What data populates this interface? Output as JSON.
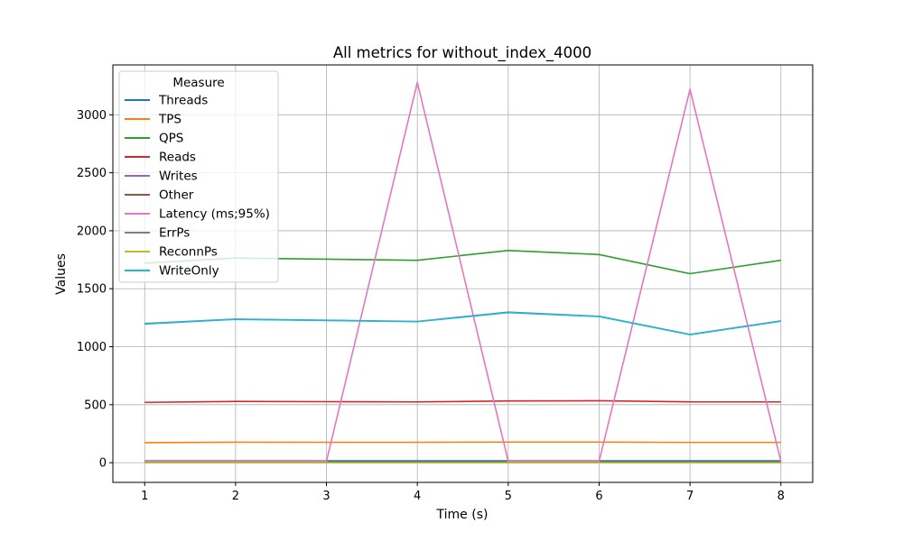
{
  "chart_data": {
    "type": "line",
    "title": "All metrics for without_index_4000",
    "xlabel": "Time (s)",
    "ylabel": "Values",
    "x": [
      1,
      2,
      3,
      4,
      5,
      6,
      7,
      8
    ],
    "xlim": [
      0.65,
      8.35
    ],
    "ylim": [
      -170,
      3430
    ],
    "xticks": [
      1,
      2,
      3,
      4,
      5,
      6,
      7,
      8
    ],
    "yticks": [
      0,
      500,
      1000,
      1500,
      2000,
      2500,
      3000
    ],
    "grid": true,
    "legend": {
      "title": "Measure",
      "placement": "top-left"
    },
    "series": [
      {
        "name": "Threads",
        "color": "#1f77b4",
        "values": [
          16,
          16,
          16,
          16,
          16,
          16,
          16,
          16
        ]
      },
      {
        "name": "TPS",
        "color": "#ff7f0e",
        "values": [
          173,
          177,
          176,
          176,
          178,
          178,
          175,
          175
        ]
      },
      {
        "name": "QPS",
        "color": "#2ca02c",
        "values": [
          1720,
          1765,
          1755,
          1745,
          1830,
          1795,
          1630,
          1745
        ]
      },
      {
        "name": "Reads",
        "color": "#d62728",
        "values": [
          520,
          528,
          526,
          524,
          532,
          534,
          524,
          524
        ]
      },
      {
        "name": "Writes",
        "color": "#9467bd",
        "values": [
          1200,
          1238,
          1228,
          1218,
          1298,
          1262,
          1106,
          1222
        ]
      },
      {
        "name": "Other",
        "color": "#8c564b",
        "values": [
          5,
          5,
          5,
          5,
          5,
          5,
          5,
          5
        ]
      },
      {
        "name": "Latency (ms;95%)",
        "color": "#e377c2",
        "values": [
          12,
          12,
          12,
          3280,
          12,
          12,
          3220,
          12
        ]
      },
      {
        "name": "ErrPs",
        "color": "#7f7f7f",
        "values": [
          0,
          0,
          0,
          0,
          0,
          0,
          0,
          0
        ]
      },
      {
        "name": "ReconnPs",
        "color": "#bcbd22",
        "values": [
          0,
          0,
          0,
          0,
          0,
          0,
          0,
          0
        ]
      },
      {
        "name": "WriteOnly",
        "color": "#17becf",
        "values": [
          1196,
          1236,
          1226,
          1216,
          1294,
          1260,
          1104,
          1220
        ]
      }
    ]
  }
}
